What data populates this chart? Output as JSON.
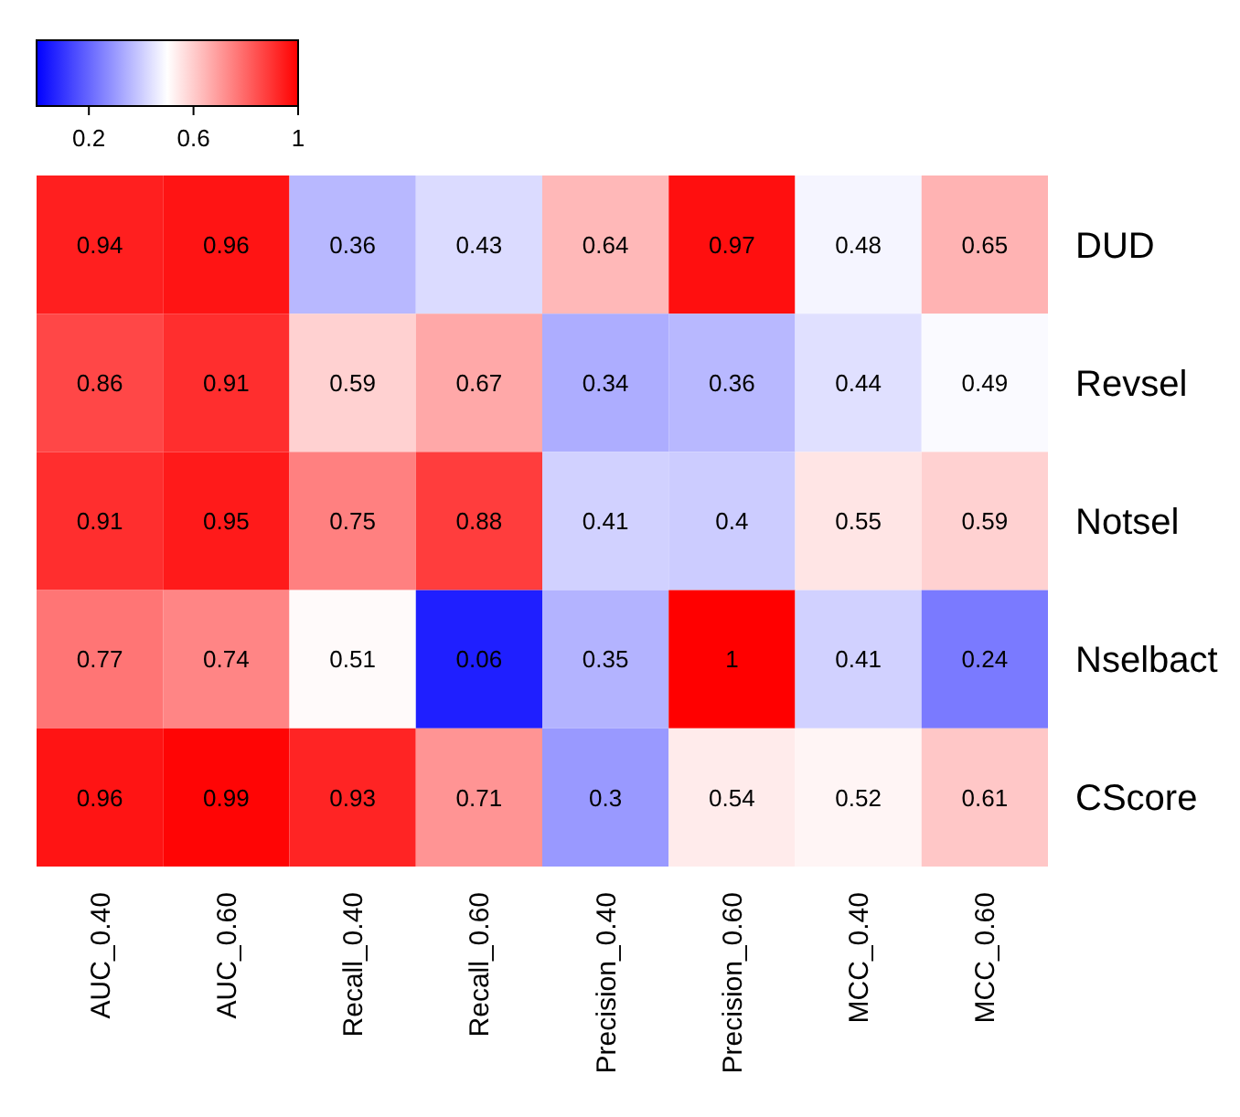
{
  "chart_data": {
    "type": "heatmap",
    "categories": [
      "AUC_0.40",
      "AUC_0.60",
      "Recall_0.40",
      "Recall_0.60",
      "Precision_0.40",
      "Precision_0.60",
      "MCC_0.40",
      "MCC_0.60"
    ],
    "y_categories": [
      "DUD",
      "Revsel",
      "Notsel",
      "Nselbact",
      "CScore"
    ],
    "cells": [
      [
        0.94,
        0.96,
        0.36,
        0.43,
        0.64,
        0.97,
        0.48,
        0.65
      ],
      [
        0.86,
        0.91,
        0.59,
        0.67,
        0.34,
        0.36,
        0.44,
        0.49
      ],
      [
        0.91,
        0.95,
        0.75,
        0.88,
        0.41,
        0.4,
        0.55,
        0.59
      ],
      [
        0.77,
        0.74,
        0.51,
        0.06,
        0.35,
        1,
        0.41,
        0.24
      ],
      [
        0.96,
        0.99,
        0.93,
        0.71,
        0.3,
        0.54,
        0.52,
        0.61
      ]
    ],
    "colors": [
      "#0000ff",
      "#ffffff",
      "#ff0000"
    ],
    "clim": [
      0,
      1
    ],
    "cticks": [
      0.2,
      0.6,
      1
    ],
    "data_labels": true
  }
}
